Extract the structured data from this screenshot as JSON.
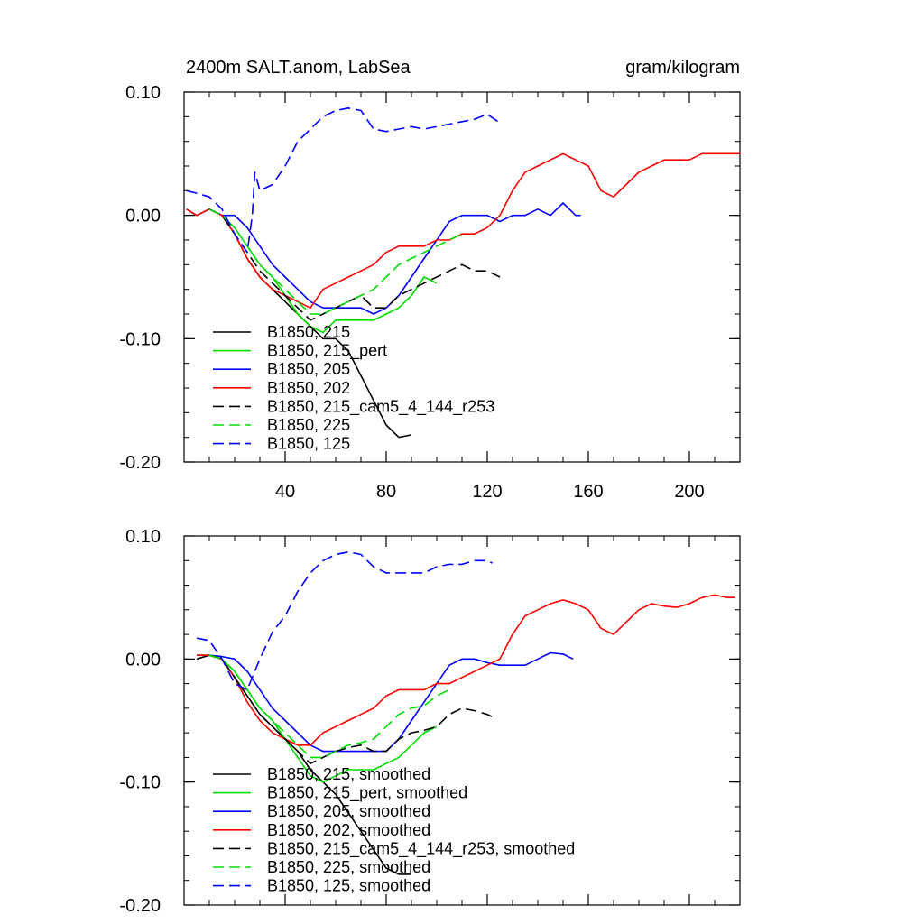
{
  "title_left": "2400m SALT.anom, LabSea",
  "title_right": "gram/kilogram",
  "chart_data": [
    {
      "type": "line",
      "panel": "top",
      "xlim": [
        0,
        220
      ],
      "ylim": [
        -0.2,
        0.1
      ],
      "xticks": [
        40,
        80,
        120,
        160,
        200
      ],
      "xtick_labels": [
        "40",
        "80",
        "120",
        "160",
        "200"
      ],
      "yticks": [
        0.1,
        0.0,
        -0.1,
        -0.2
      ],
      "ytick_labels": [
        "0.10",
        "0.00",
        "-0.10",
        "-0.20"
      ],
      "grid": false,
      "legend_position": "lower-left",
      "series": [
        {
          "name": "B1850, 215",
          "color": "#000000",
          "dash": "solid",
          "x": [
            1,
            5,
            10,
            15,
            20,
            25,
            30,
            35,
            40,
            45,
            50,
            55,
            60,
            65,
            70,
            75,
            80,
            85,
            90
          ],
          "y": [
            0.005,
            0.0,
            0.005,
            0.0,
            -0.015,
            -0.035,
            -0.05,
            -0.06,
            -0.07,
            -0.08,
            -0.09,
            -0.1,
            -0.1,
            -0.11,
            -0.13,
            -0.15,
            -0.17,
            -0.18,
            -0.178
          ]
        },
        {
          "name": "B1850, 215_pert",
          "color": "#00dd00",
          "dash": "solid",
          "x": [
            1,
            5,
            10,
            15,
            20,
            25,
            30,
            35,
            40,
            45,
            50,
            55,
            60,
            65,
            70,
            75,
            80,
            85,
            90,
            95,
            100
          ],
          "y": [
            0.005,
            0.0,
            0.005,
            0.0,
            -0.01,
            -0.025,
            -0.04,
            -0.05,
            -0.065,
            -0.08,
            -0.09,
            -0.095,
            -0.085,
            -0.085,
            -0.085,
            -0.085,
            -0.08,
            -0.075,
            -0.065,
            -0.05,
            -0.055
          ]
        },
        {
          "name": "B1850, 205",
          "color": "#0000ff",
          "dash": "solid",
          "x": [
            1,
            5,
            10,
            15,
            20,
            25,
            30,
            35,
            40,
            45,
            50,
            55,
            60,
            65,
            70,
            75,
            80,
            85,
            90,
            95,
            100,
            105,
            110,
            115,
            120,
            125,
            130,
            135,
            140,
            145,
            150,
            155,
            157
          ],
          "y": [
            0.005,
            0.0,
            0.005,
            0.0,
            0.0,
            -0.01,
            -0.025,
            -0.04,
            -0.05,
            -0.06,
            -0.07,
            -0.075,
            -0.075,
            -0.075,
            -0.075,
            -0.08,
            -0.075,
            -0.065,
            -0.05,
            -0.035,
            -0.02,
            -0.005,
            0.0,
            0.0,
            0.0,
            -0.005,
            0.0,
            0.0,
            0.005,
            0.0,
            0.01,
            0.0,
            0.0
          ]
        },
        {
          "name": "B1850, 202",
          "color": "#ff0000",
          "dash": "solid",
          "x": [
            1,
            5,
            10,
            15,
            20,
            25,
            30,
            35,
            40,
            45,
            50,
            55,
            60,
            65,
            70,
            75,
            80,
            85,
            90,
            95,
            100,
            105,
            110,
            115,
            120,
            125,
            130,
            135,
            140,
            145,
            150,
            155,
            160,
            165,
            170,
            175,
            180,
            185,
            190,
            195,
            200,
            205,
            210,
            215,
            220
          ],
          "y": [
            0.005,
            0.0,
            0.005,
            0.0,
            -0.015,
            -0.035,
            -0.05,
            -0.06,
            -0.065,
            -0.07,
            -0.075,
            -0.06,
            -0.055,
            -0.05,
            -0.045,
            -0.04,
            -0.03,
            -0.025,
            -0.025,
            -0.025,
            -0.02,
            -0.02,
            -0.015,
            -0.015,
            -0.01,
            0.0,
            0.02,
            0.035,
            0.04,
            0.045,
            0.05,
            0.045,
            0.04,
            0.02,
            0.015,
            0.025,
            0.035,
            0.04,
            0.045,
            0.045,
            0.045,
            0.05,
            0.05,
            0.05,
            0.05
          ]
        },
        {
          "name": "B1850, 215_cam5_4_144_r253",
          "color": "#000000",
          "dash": "dashed",
          "x": [
            10,
            15,
            20,
            25,
            30,
            35,
            40,
            45,
            50,
            55,
            60,
            65,
            70,
            75,
            80,
            85,
            90,
            95,
            100,
            105,
            110,
            115,
            120,
            125
          ],
          "y": [
            0.005,
            0.0,
            -0.015,
            -0.03,
            -0.045,
            -0.055,
            -0.065,
            -0.075,
            -0.085,
            -0.08,
            -0.075,
            -0.07,
            -0.065,
            -0.075,
            -0.075,
            -0.065,
            -0.06,
            -0.055,
            -0.05,
            -0.045,
            -0.04,
            -0.045,
            -0.045,
            -0.05
          ]
        },
        {
          "name": "B1850, 225",
          "color": "#00dd00",
          "dash": "dashed",
          "x": [
            10,
            15,
            20,
            25,
            30,
            35,
            40,
            45,
            50,
            55,
            60,
            65,
            70,
            75,
            80,
            85,
            90,
            95,
            100,
            105,
            110
          ],
          "y": [
            0.005,
            0.0,
            -0.01,
            -0.025,
            -0.04,
            -0.05,
            -0.06,
            -0.07,
            -0.08,
            -0.08,
            -0.075,
            -0.07,
            -0.065,
            -0.06,
            -0.05,
            -0.04,
            -0.035,
            -0.03,
            -0.025,
            -0.02,
            -0.015
          ]
        },
        {
          "name": "B1850, 125",
          "color": "#0000ff",
          "dash": "dashed",
          "x": [
            1,
            5,
            10,
            15,
            20,
            25,
            27,
            28,
            30,
            35,
            40,
            45,
            50,
            55,
            60,
            65,
            70,
            75,
            80,
            85,
            90,
            95,
            100,
            105,
            110,
            115,
            120,
            125
          ],
          "y": [
            0.02,
            0.018,
            0.015,
            0.005,
            -0.015,
            -0.03,
            0.0,
            0.035,
            0.02,
            0.025,
            0.04,
            0.06,
            0.07,
            0.08,
            0.085,
            0.087,
            0.085,
            0.07,
            0.068,
            0.07,
            0.072,
            0.07,
            0.072,
            0.074,
            0.076,
            0.078,
            0.082,
            0.075
          ]
        }
      ]
    },
    {
      "type": "line",
      "panel": "bottom",
      "xlim": [
        0,
        220
      ],
      "ylim": [
        -0.2,
        0.1
      ],
      "xticks": [
        40,
        80,
        120,
        160,
        200
      ],
      "xtick_labels": [],
      "yticks": [
        0.1,
        0.0,
        -0.1,
        -0.2
      ],
      "ytick_labels": [
        "0.10",
        "0.00",
        "-0.10",
        "-0.20"
      ],
      "grid": false,
      "legend_position": "lower-left",
      "series": [
        {
          "name": "B1850, 215, smoothed",
          "color": "#000000",
          "dash": "solid",
          "x": [
            5,
            10,
            15,
            20,
            25,
            30,
            35,
            40,
            45,
            50,
            55,
            60,
            65,
            70,
            75,
            80,
            85,
            90
          ],
          "y": [
            0.0,
            0.003,
            0.0,
            -0.015,
            -0.03,
            -0.045,
            -0.055,
            -0.065,
            -0.075,
            -0.09,
            -0.1,
            -0.11,
            -0.125,
            -0.14,
            -0.155,
            -0.17,
            -0.175,
            -0.175
          ]
        },
        {
          "name": "B1850, 215_pert, smoothed",
          "color": "#00dd00",
          "dash": "solid",
          "x": [
            5,
            10,
            15,
            20,
            25,
            30,
            35,
            40,
            45,
            50,
            55,
            60,
            65,
            70,
            75,
            80,
            85,
            90,
            95,
            100
          ],
          "y": [
            0.003,
            0.003,
            0.0,
            -0.01,
            -0.025,
            -0.04,
            -0.05,
            -0.065,
            -0.08,
            -0.095,
            -0.1,
            -0.095,
            -0.09,
            -0.09,
            -0.09,
            -0.085,
            -0.08,
            -0.07,
            -0.06,
            -0.055
          ]
        },
        {
          "name": "B1850, 205, smoothed",
          "color": "#0000ff",
          "dash": "solid",
          "x": [
            5,
            10,
            15,
            20,
            25,
            30,
            35,
            40,
            45,
            50,
            55,
            60,
            65,
            70,
            75,
            80,
            85,
            90,
            95,
            100,
            105,
            110,
            115,
            120,
            125,
            130,
            135,
            140,
            145,
            150,
            154
          ],
          "y": [
            0.003,
            0.003,
            0.002,
            0.0,
            -0.01,
            -0.025,
            -0.04,
            -0.05,
            -0.06,
            -0.07,
            -0.075,
            -0.075,
            -0.075,
            -0.075,
            -0.075,
            -0.075,
            -0.065,
            -0.05,
            -0.035,
            -0.02,
            -0.005,
            0.0,
            0.0,
            -0.003,
            -0.005,
            -0.005,
            -0.005,
            0.0,
            0.005,
            0.004,
            0.0
          ]
        },
        {
          "name": "B1850, 202, smoothed",
          "color": "#ff0000",
          "dash": "solid",
          "x": [
            5,
            10,
            15,
            20,
            25,
            30,
            35,
            40,
            45,
            50,
            55,
            60,
            65,
            70,
            75,
            80,
            85,
            90,
            95,
            100,
            105,
            110,
            115,
            120,
            125,
            130,
            135,
            140,
            145,
            150,
            155,
            160,
            165,
            170,
            175,
            180,
            185,
            190,
            195,
            200,
            205,
            210,
            215,
            218
          ],
          "y": [
            0.003,
            0.003,
            0.0,
            -0.015,
            -0.035,
            -0.05,
            -0.06,
            -0.065,
            -0.07,
            -0.07,
            -0.06,
            -0.055,
            -0.05,
            -0.045,
            -0.04,
            -0.03,
            -0.025,
            -0.025,
            -0.025,
            -0.02,
            -0.02,
            -0.015,
            -0.01,
            -0.005,
            0.0,
            0.02,
            0.035,
            0.04,
            0.045,
            0.048,
            0.045,
            0.04,
            0.025,
            0.02,
            0.03,
            0.04,
            0.045,
            0.043,
            0.042,
            0.045,
            0.05,
            0.052,
            0.05,
            0.05
          ]
        },
        {
          "name": "B1850, 215_cam5_4_144_r253, smoothed",
          "color": "#000000",
          "dash": "dashed",
          "x": [
            10,
            15,
            20,
            25,
            30,
            35,
            40,
            45,
            50,
            55,
            60,
            65,
            70,
            75,
            80,
            85,
            90,
            95,
            100,
            105,
            110,
            115,
            120,
            123
          ],
          "y": [
            0.003,
            0.0,
            -0.015,
            -0.03,
            -0.045,
            -0.055,
            -0.065,
            -0.075,
            -0.085,
            -0.08,
            -0.075,
            -0.072,
            -0.07,
            -0.075,
            -0.075,
            -0.065,
            -0.06,
            -0.058,
            -0.055,
            -0.045,
            -0.04,
            -0.042,
            -0.045,
            -0.048
          ]
        },
        {
          "name": "B1850, 225, smoothed",
          "color": "#00dd00",
          "dash": "dashed",
          "x": [
            10,
            15,
            20,
            25,
            30,
            35,
            40,
            45,
            50,
            55,
            60,
            65,
            70,
            75,
            80,
            85,
            90,
            95,
            100,
            105
          ],
          "y": [
            0.003,
            0.0,
            -0.01,
            -0.025,
            -0.04,
            -0.05,
            -0.06,
            -0.07,
            -0.08,
            -0.08,
            -0.075,
            -0.07,
            -0.068,
            -0.065,
            -0.055,
            -0.045,
            -0.04,
            -0.038,
            -0.03,
            -0.025
          ]
        },
        {
          "name": "B1850, 125, smoothed",
          "color": "#0000ff",
          "dash": "dashed",
          "x": [
            5,
            10,
            15,
            20,
            25,
            30,
            35,
            40,
            45,
            50,
            55,
            60,
            65,
            70,
            75,
            80,
            85,
            90,
            95,
            100,
            105,
            110,
            115,
            120,
            122
          ],
          "y": [
            0.017,
            0.015,
            0.0,
            -0.02,
            -0.025,
            0.0,
            0.022,
            0.035,
            0.055,
            0.07,
            0.08,
            0.085,
            0.087,
            0.085,
            0.075,
            0.07,
            0.07,
            0.07,
            0.07,
            0.075,
            0.077,
            0.077,
            0.08,
            0.08,
            0.078
          ]
        }
      ]
    }
  ]
}
